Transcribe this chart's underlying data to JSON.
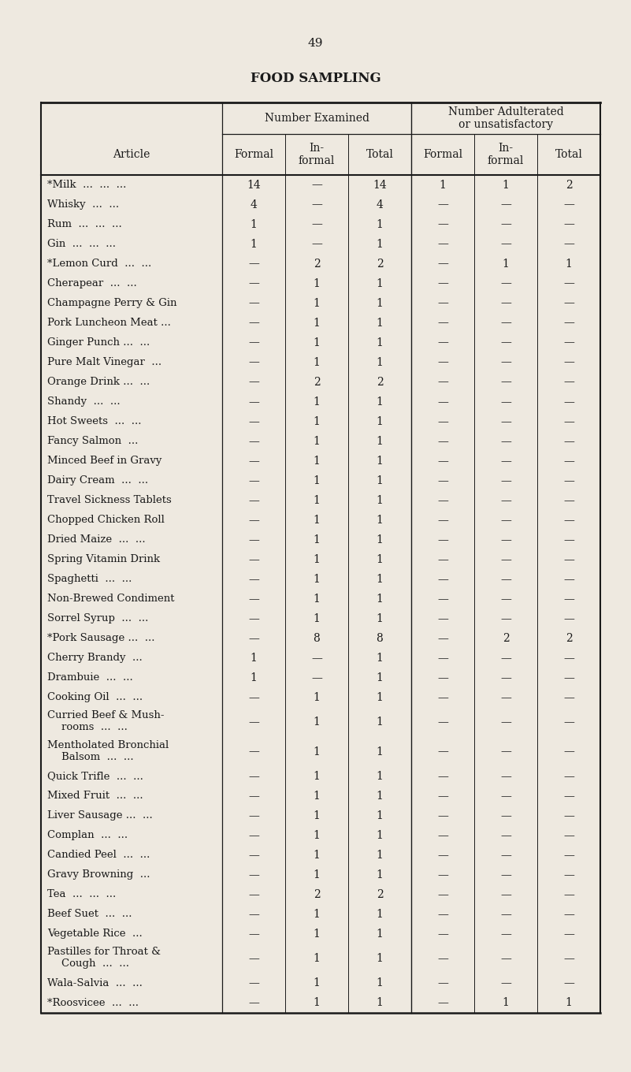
{
  "page_number": "49",
  "title": "FOOD SAMPLING",
  "bg_color": "#EEE9E0",
  "text_color": "#1a1a1a",
  "rows": [
    [
      "*Milk  ...  ...  ...",
      "14",
      "—",
      "14",
      "1",
      "1",
      "2"
    ],
    [
      "Whisky  ...  ...",
      "4",
      "—",
      "4",
      "—",
      "—",
      "—"
    ],
    [
      "Rum  ...  ...  ...",
      "1",
      "—",
      "1",
      "—",
      "—",
      "—"
    ],
    [
      "Gin  ...  ...  ...",
      "1",
      "—",
      "1",
      "—",
      "—",
      "—"
    ],
    [
      "*Lemon Curd  ...  ...",
      "—",
      "2",
      "2",
      "—",
      "1",
      "1"
    ],
    [
      "Cherapear  ...  ...",
      "—",
      "1",
      "1",
      "—",
      "—",
      "—"
    ],
    [
      "Champagne Perry & Gin",
      "—",
      "1",
      "1",
      "—",
      "—",
      "—"
    ],
    [
      "Pork Luncheon Meat ...",
      "—",
      "1",
      "1",
      "—",
      "—",
      "—"
    ],
    [
      "Ginger Punch ...  ...",
      "—",
      "1",
      "1",
      "—",
      "—",
      "—"
    ],
    [
      "Pure Malt Vinegar  ...",
      "—",
      "1",
      "1",
      "—",
      "—",
      "—"
    ],
    [
      "Orange Drink ...  ...",
      "—",
      "2",
      "2",
      "—",
      "—",
      "—"
    ],
    [
      "Shandy  ...  ...",
      "—",
      "1",
      "1",
      "—",
      "—",
      "—"
    ],
    [
      "Hot Sweets  ...  ...",
      "—",
      "1",
      "1",
      "—",
      "—",
      "—"
    ],
    [
      "Fancy Salmon  ...",
      "—",
      "1",
      "1",
      "—",
      "—",
      "—"
    ],
    [
      "Minced Beef in Gravy",
      "—",
      "1",
      "1",
      "—",
      "—",
      "—"
    ],
    [
      "Dairy Cream  ...  ...",
      "—",
      "1",
      "1",
      "—",
      "—",
      "—"
    ],
    [
      "Travel Sickness Tablets",
      "—",
      "1",
      "1",
      "—",
      "—",
      "—"
    ],
    [
      "Chopped Chicken Roll",
      "—",
      "1",
      "1",
      "—",
      "—",
      "—"
    ],
    [
      "Dried Maize  ...  ...",
      "—",
      "1",
      "1",
      "—",
      "—",
      "—"
    ],
    [
      "Spring Vitamin Drink",
      "—",
      "1",
      "1",
      "—",
      "—",
      "—"
    ],
    [
      "Spaghetti  ...  ...",
      "—",
      "1",
      "1",
      "—",
      "—",
      "—"
    ],
    [
      "Non-Brewed Condiment",
      "—",
      "1",
      "1",
      "—",
      "—",
      "—"
    ],
    [
      "Sorrel Syrup  ...  ...",
      "—",
      "1",
      "1",
      "—",
      "—",
      "—"
    ],
    [
      "*Pork Sausage ...  ...",
      "—",
      "8",
      "8",
      "—",
      "2",
      "2"
    ],
    [
      "Cherry Brandy  ...",
      "1",
      "—",
      "1",
      "—",
      "—",
      "—"
    ],
    [
      "Drambuie  ...  ...",
      "1",
      "—",
      "1",
      "—",
      "—",
      "—"
    ],
    [
      "Cooking Oil  ...  ...",
      "—",
      "1",
      "1",
      "—",
      "—",
      "—"
    ],
    [
      "Curried Beef & Mush-\nrooms  ...  ...",
      "—",
      "1",
      "1",
      "—",
      "—",
      "—"
    ],
    [
      "Mentholated Bronchial\nBalsom  ...  ...",
      "—",
      "1",
      "1",
      "—",
      "—",
      "—"
    ],
    [
      "Quick Trifle  ...  ...",
      "—",
      "1",
      "1",
      "—",
      "—",
      "—"
    ],
    [
      "Mixed Fruit  ...  ...",
      "—",
      "1",
      "1",
      "—",
      "—",
      "—"
    ],
    [
      "Liver Sausage ...  ...",
      "—",
      "1",
      "1",
      "—",
      "—",
      "—"
    ],
    [
      "Complan  ...  ...",
      "—",
      "1",
      "1",
      "—",
      "—",
      "—"
    ],
    [
      "Candied Peel  ...  ...",
      "—",
      "1",
      "1",
      "—",
      "—",
      "—"
    ],
    [
      "Gravy Browning  ...",
      "—",
      "1",
      "1",
      "—",
      "—",
      "—"
    ],
    [
      "Tea  ...  ...  ...",
      "—",
      "2",
      "2",
      "—",
      "—",
      "—"
    ],
    [
      "Beef Suet  ...  ...",
      "—",
      "1",
      "1",
      "—",
      "—",
      "—"
    ],
    [
      "Vegetable Rice  ...",
      "—",
      "1",
      "1",
      "—",
      "—",
      "—"
    ],
    [
      "Pastilles for Throat &\nCough  ...  ...",
      "—",
      "1",
      "1",
      "—",
      "—",
      "—"
    ],
    [
      "Wala-Salvia  ...  ...",
      "—",
      "1",
      "1",
      "—",
      "—",
      "—"
    ],
    [
      "*Roosvicee  ...  ...",
      "—",
      "1",
      "1",
      "—",
      "1",
      "1"
    ]
  ],
  "multiline_rows": [
    27,
    28,
    38
  ],
  "fig_width": 8.01,
  "fig_height": 13.6,
  "dpi": 100
}
